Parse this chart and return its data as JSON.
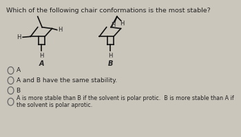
{
  "title": "Which of the following chair conformations is the most stable?",
  "title_fontsize": 6.8,
  "bg_color": "#cbc6bc",
  "options": [
    "A",
    "A and B have the same stability.",
    "B",
    "A is more stable than B if the solvent is polar protic.  B is more stable than A if\nthe solvent is polar aprotic."
  ],
  "label_A": "A",
  "label_B": "B",
  "text_color": "#222222",
  "line_color": "#111111",
  "lw": 1.2,
  "radio_color": "#666666"
}
